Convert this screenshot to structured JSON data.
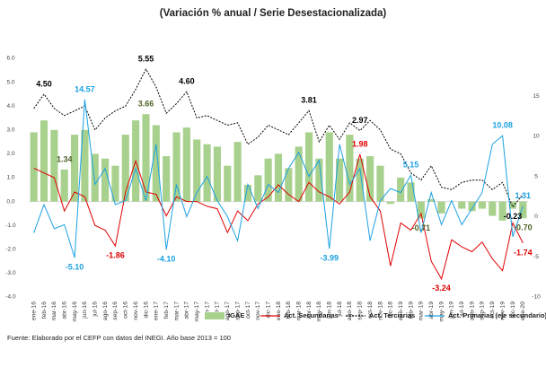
{
  "chart_data": {
    "type": "bar",
    "title": "(Variación % anual / Serie Desestacionalizada)",
    "source": "Fuente: Elaborado por el CEFP con datos del INEGI. Año base 2013 = 100",
    "categories": [
      "ene-16",
      "feb-16",
      "mar-16",
      "abr-16",
      "may-16",
      "jun-16",
      "jul-16",
      "ago-16",
      "sep-16",
      "oct-16",
      "nov-16",
      "dic-16",
      "ene-17",
      "feb-17",
      "mar-17",
      "abr-17",
      "may-17",
      "jun-17",
      "jul-17",
      "ago-17",
      "sep-17",
      "oct-17",
      "nov-17",
      "dic-17",
      "ene-18",
      "feb-18",
      "mar-18",
      "abr-18",
      "may-18",
      "jun-18",
      "jul-18",
      "ago-18",
      "sep-18",
      "oct-18",
      "nov-18",
      "dic-18",
      "ene-19",
      "feb-19",
      "mar-19",
      "abr-19",
      "may-19",
      "jun-19",
      "jul-19",
      "ago-19",
      "sep-19",
      "oct-19",
      "nov-19",
      "dic-19",
      "ene-20"
    ],
    "ylim": [
      -4,
      6
    ],
    "yticks": [
      {
        "value": -4,
        "label": "-4.0"
      },
      {
        "value": -3,
        "label": "-3.0"
      },
      {
        "value": -2,
        "label": "-2.0"
      },
      {
        "value": -1,
        "label": "-1.0"
      },
      {
        "value": 0,
        "label": "0.0"
      },
      {
        "value": 1,
        "label": "1.0"
      },
      {
        "value": 2,
        "label": "2.0"
      },
      {
        "value": 3,
        "label": "3.0"
      },
      {
        "value": 4,
        "label": "4.0"
      },
      {
        "value": 5,
        "label": "5.0"
      },
      {
        "value": 6,
        "label": "6.0"
      }
    ],
    "y2lim": [
      -10,
      19.7
    ],
    "y2ticks": [
      -10,
      -5,
      0,
      5,
      10,
      15
    ],
    "grid": false,
    "legend": "bottom",
    "series": [
      {
        "name": "IGAE",
        "type": "bar",
        "color": "#a9d18e",
        "label_color": "#4f6228",
        "values": [
          2.9,
          3.4,
          3.0,
          1.34,
          2.8,
          3.0,
          2.0,
          1.8,
          1.5,
          2.8,
          3.4,
          3.66,
          3.2,
          1.9,
          2.9,
          3.1,
          2.6,
          2.4,
          2.3,
          1.5,
          2.5,
          0.7,
          1.1,
          1.8,
          2.0,
          1.4,
          2.3,
          2.9,
          1.8,
          2.9,
          1.8,
          2.8,
          1.8,
          1.9,
          1.5,
          -0.1,
          1.0,
          0.8,
          -0.71,
          0.1,
          -0.5,
          0.0,
          -0.3,
          -0.4,
          -0.3,
          -0.6,
          -0.8,
          -0.3,
          -0.7
        ],
        "value_labels": [
          null,
          null,
          null,
          "1.34",
          null,
          null,
          null,
          null,
          null,
          null,
          null,
          "3.66",
          null,
          null,
          null,
          null,
          null,
          null,
          null,
          null,
          null,
          null,
          null,
          null,
          null,
          null,
          null,
          null,
          null,
          null,
          null,
          null,
          null,
          null,
          null,
          null,
          null,
          null,
          "-0.71",
          null,
          null,
          null,
          null,
          null,
          null,
          null,
          null,
          null,
          "-0.70"
        ]
      },
      {
        "name": "Act. Secundarias",
        "type": "line",
        "color": "#e00000",
        "label_color": "#e00000",
        "values": [
          1.4,
          1.2,
          1.0,
          -0.4,
          0.4,
          0.2,
          -1.0,
          -1.2,
          -1.86,
          0.4,
          1.7,
          0.4,
          0.3,
          -0.6,
          0.2,
          0.0,
          0.0,
          -0.2,
          -0.3,
          -1.3,
          -0.4,
          -0.8,
          -0.1,
          0.2,
          0.7,
          0.3,
          0.0,
          0.8,
          0.4,
          0.2,
          -0.1,
          0.4,
          1.98,
          0.2,
          -0.4,
          -2.7,
          -0.9,
          -1.2,
          -0.5,
          -2.5,
          -3.24,
          -1.6,
          -1.9,
          -2.1,
          -1.7,
          -2.4,
          -2.9,
          -0.9,
          -1.74
        ],
        "value_labels": [
          null,
          null,
          null,
          null,
          null,
          null,
          null,
          null,
          "-1.86",
          null,
          null,
          null,
          null,
          null,
          null,
          null,
          null,
          null,
          null,
          null,
          null,
          null,
          null,
          null,
          null,
          null,
          null,
          null,
          null,
          null,
          null,
          null,
          "1.98",
          null,
          null,
          null,
          null,
          null,
          null,
          null,
          "-3.24",
          null,
          null,
          null,
          null,
          null,
          null,
          null,
          "-1.74"
        ]
      },
      {
        "name": "Act. Terciarias",
        "type": "line",
        "dashed": true,
        "color": "#000000",
        "label_color": "#000000",
        "values": [
          3.9,
          4.5,
          3.9,
          3.6,
          3.8,
          4.0,
          3.0,
          3.5,
          3.8,
          4.0,
          4.7,
          5.55,
          4.8,
          3.7,
          4.1,
          4.6,
          3.5,
          3.6,
          3.4,
          3.2,
          3.3,
          2.4,
          2.7,
          3.2,
          3.0,
          2.8,
          3.3,
          3.81,
          2.5,
          3.2,
          2.6,
          3.3,
          2.97,
          3.4,
          3.0,
          2.2,
          2.0,
          1.2,
          0.9,
          1.5,
          0.6,
          0.5,
          0.8,
          0.9,
          0.9,
          0.5,
          0.8,
          -0.23,
          0.3
        ],
        "value_labels": [
          null,
          "4.50",
          null,
          null,
          null,
          null,
          null,
          null,
          null,
          null,
          null,
          "5.55",
          null,
          null,
          null,
          "4.60",
          null,
          null,
          null,
          null,
          null,
          null,
          null,
          null,
          null,
          null,
          null,
          "3.81",
          null,
          null,
          null,
          null,
          "2.97",
          null,
          null,
          null,
          null,
          null,
          null,
          null,
          null,
          null,
          null,
          null,
          null,
          null,
          null,
          "-0.23",
          null
        ]
      },
      {
        "name": "Act. Primarias (eje secundario)",
        "type": "line",
        "axis": "y2",
        "color": "#1ba1e2",
        "label_color": "#1ba1e2",
        "values": [
          -2,
          1.5,
          -1.5,
          -1,
          -5.1,
          14.57,
          4,
          6,
          1.5,
          2,
          6,
          2,
          9,
          -4.1,
          4,
          0,
          3,
          5,
          2,
          0,
          -3,
          4,
          1,
          4,
          3,
          6,
          8,
          5,
          7,
          -3.99,
          9,
          4,
          6,
          -3,
          2,
          3.5,
          3,
          5.15,
          -2,
          3,
          -1,
          2,
          -1,
          1,
          3,
          9,
          10.08,
          -2.5,
          1.31
        ],
        "value_labels": [
          null,
          null,
          null,
          null,
          "-5.10",
          "14.57",
          null,
          null,
          null,
          null,
          null,
          null,
          null,
          "-4.10",
          null,
          null,
          null,
          null,
          null,
          null,
          null,
          null,
          null,
          null,
          null,
          null,
          null,
          null,
          null,
          "-3.99",
          null,
          null,
          null,
          null,
          null,
          null,
          null,
          "5.15",
          null,
          null,
          null,
          null,
          null,
          null,
          null,
          null,
          "10.08",
          null,
          "1.31"
        ]
      }
    ]
  }
}
